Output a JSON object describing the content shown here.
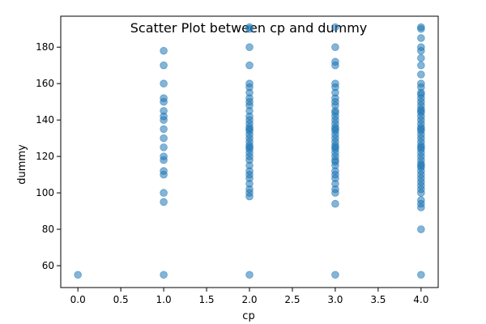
{
  "chart_data": {
    "type": "scatter",
    "title": "Scatter Plot between cp and dummy",
    "xlabel": "cp",
    "ylabel": "dummy",
    "xlim": [
      -0.2,
      4.2
    ],
    "ylim": [
      48,
      197
    ],
    "xticks": [
      0.0,
      0.5,
      1.0,
      1.5,
      2.0,
      2.5,
      3.0,
      3.5,
      4.0
    ],
    "xtick_labels": [
      "0.0",
      "0.5",
      "1.0",
      "1.5",
      "2.0",
      "2.5",
      "3.0",
      "3.5",
      "4.0"
    ],
    "yticks": [
      60,
      80,
      100,
      120,
      140,
      160,
      180
    ],
    "ytick_labels": [
      "60",
      "80",
      "100",
      "120",
      "140",
      "160",
      "180"
    ],
    "grid": false,
    "series": [
      {
        "color": "#1f77b4",
        "alpha": 0.55,
        "points": [
          {
            "x": 0,
            "y": 55
          },
          {
            "x": 1,
            "y": 55
          },
          {
            "x": 1,
            "y": 95
          },
          {
            "x": 1,
            "y": 100
          },
          {
            "x": 1,
            "y": 110
          },
          {
            "x": 1,
            "y": 112
          },
          {
            "x": 1,
            "y": 118
          },
          {
            "x": 1,
            "y": 120
          },
          {
            "x": 1,
            "y": 125
          },
          {
            "x": 1,
            "y": 130
          },
          {
            "x": 1,
            "y": 135
          },
          {
            "x": 1,
            "y": 140
          },
          {
            "x": 1,
            "y": 142
          },
          {
            "x": 1,
            "y": 145
          },
          {
            "x": 1,
            "y": 150
          },
          {
            "x": 1,
            "y": 152
          },
          {
            "x": 1,
            "y": 160
          },
          {
            "x": 1,
            "y": 170
          },
          {
            "x": 1,
            "y": 178
          },
          {
            "x": 2,
            "y": 55
          },
          {
            "x": 2,
            "y": 98
          },
          {
            "x": 2,
            "y": 100
          },
          {
            "x": 2,
            "y": 102
          },
          {
            "x": 2,
            "y": 105
          },
          {
            "x": 2,
            "y": 108
          },
          {
            "x": 2,
            "y": 110
          },
          {
            "x": 2,
            "y": 112
          },
          {
            "x": 2,
            "y": 115
          },
          {
            "x": 2,
            "y": 118
          },
          {
            "x": 2,
            "y": 120
          },
          {
            "x": 2,
            "y": 122
          },
          {
            "x": 2,
            "y": 124
          },
          {
            "x": 2,
            "y": 125
          },
          {
            "x": 2,
            "y": 126
          },
          {
            "x": 2,
            "y": 128
          },
          {
            "x": 2,
            "y": 130
          },
          {
            "x": 2,
            "y": 132
          },
          {
            "x": 2,
            "y": 134
          },
          {
            "x": 2,
            "y": 135
          },
          {
            "x": 2,
            "y": 136
          },
          {
            "x": 2,
            "y": 138
          },
          {
            "x": 2,
            "y": 140
          },
          {
            "x": 2,
            "y": 142
          },
          {
            "x": 2,
            "y": 145
          },
          {
            "x": 2,
            "y": 148
          },
          {
            "x": 2,
            "y": 150
          },
          {
            "x": 2,
            "y": 152
          },
          {
            "x": 2,
            "y": 155
          },
          {
            "x": 2,
            "y": 158
          },
          {
            "x": 2,
            "y": 160
          },
          {
            "x": 2,
            "y": 170
          },
          {
            "x": 2,
            "y": 180
          },
          {
            "x": 2,
            "y": 190
          },
          {
            "x": 2,
            "y": 191
          },
          {
            "x": 3,
            "y": 55
          },
          {
            "x": 3,
            "y": 94
          },
          {
            "x": 3,
            "y": 100
          },
          {
            "x": 3,
            "y": 102
          },
          {
            "x": 3,
            "y": 105
          },
          {
            "x": 3,
            "y": 108
          },
          {
            "x": 3,
            "y": 110
          },
          {
            "x": 3,
            "y": 112
          },
          {
            "x": 3,
            "y": 115
          },
          {
            "x": 3,
            "y": 117
          },
          {
            "x": 3,
            "y": 118
          },
          {
            "x": 3,
            "y": 120
          },
          {
            "x": 3,
            "y": 122
          },
          {
            "x": 3,
            "y": 124
          },
          {
            "x": 3,
            "y": 125
          },
          {
            "x": 3,
            "y": 126
          },
          {
            "x": 3,
            "y": 128
          },
          {
            "x": 3,
            "y": 130
          },
          {
            "x": 3,
            "y": 132
          },
          {
            "x": 3,
            "y": 134
          },
          {
            "x": 3,
            "y": 135
          },
          {
            "x": 3,
            "y": 136
          },
          {
            "x": 3,
            "y": 138
          },
          {
            "x": 3,
            "y": 140
          },
          {
            "x": 3,
            "y": 142
          },
          {
            "x": 3,
            "y": 144
          },
          {
            "x": 3,
            "y": 145
          },
          {
            "x": 3,
            "y": 148
          },
          {
            "x": 3,
            "y": 150
          },
          {
            "x": 3,
            "y": 152
          },
          {
            "x": 3,
            "y": 155
          },
          {
            "x": 3,
            "y": 158
          },
          {
            "x": 3,
            "y": 160
          },
          {
            "x": 3,
            "y": 170
          },
          {
            "x": 3,
            "y": 172
          },
          {
            "x": 3,
            "y": 180
          },
          {
            "x": 3,
            "y": 191
          },
          {
            "x": 4,
            "y": 55
          },
          {
            "x": 4,
            "y": 80
          },
          {
            "x": 4,
            "y": 92
          },
          {
            "x": 4,
            "y": 94
          },
          {
            "x": 4,
            "y": 96
          },
          {
            "x": 4,
            "y": 100
          },
          {
            "x": 4,
            "y": 102
          },
          {
            "x": 4,
            "y": 104
          },
          {
            "x": 4,
            "y": 106
          },
          {
            "x": 4,
            "y": 108
          },
          {
            "x": 4,
            "y": 110
          },
          {
            "x": 4,
            "y": 112
          },
          {
            "x": 4,
            "y": 114
          },
          {
            "x": 4,
            "y": 115
          },
          {
            "x": 4,
            "y": 116
          },
          {
            "x": 4,
            "y": 118
          },
          {
            "x": 4,
            "y": 120
          },
          {
            "x": 4,
            "y": 122
          },
          {
            "x": 4,
            "y": 124
          },
          {
            "x": 4,
            "y": 125
          },
          {
            "x": 4,
            "y": 126
          },
          {
            "x": 4,
            "y": 128
          },
          {
            "x": 4,
            "y": 130
          },
          {
            "x": 4,
            "y": 132
          },
          {
            "x": 4,
            "y": 134
          },
          {
            "x": 4,
            "y": 135
          },
          {
            "x": 4,
            "y": 136
          },
          {
            "x": 4,
            "y": 138
          },
          {
            "x": 4,
            "y": 140
          },
          {
            "x": 4,
            "y": 142
          },
          {
            "x": 4,
            "y": 144
          },
          {
            "x": 4,
            "y": 145
          },
          {
            "x": 4,
            "y": 146
          },
          {
            "x": 4,
            "y": 148
          },
          {
            "x": 4,
            "y": 150
          },
          {
            "x": 4,
            "y": 152
          },
          {
            "x": 4,
            "y": 154
          },
          {
            "x": 4,
            "y": 155
          },
          {
            "x": 4,
            "y": 158
          },
          {
            "x": 4,
            "y": 160
          },
          {
            "x": 4,
            "y": 165
          },
          {
            "x": 4,
            "y": 170
          },
          {
            "x": 4,
            "y": 174
          },
          {
            "x": 4,
            "y": 178
          },
          {
            "x": 4,
            "y": 180
          },
          {
            "x": 4,
            "y": 185
          },
          {
            "x": 4,
            "y": 190
          },
          {
            "x": 4,
            "y": 191
          }
        ]
      }
    ]
  }
}
